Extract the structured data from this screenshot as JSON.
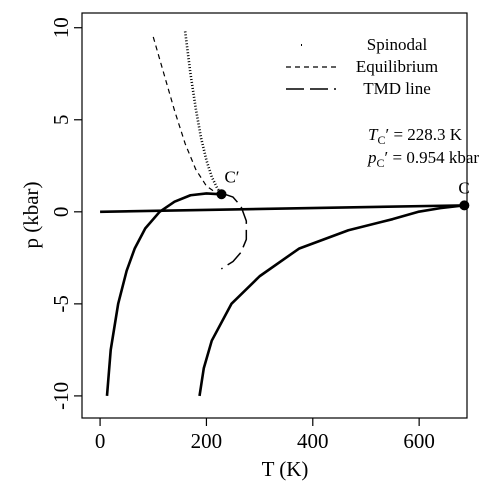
{
  "chart_data": {
    "type": "line",
    "x_label": "T (K)",
    "y_label": "p (kbar)",
    "xlim": [
      -34,
      690
    ],
    "ylim": [
      -11.2,
      10.8
    ],
    "xticks": [
      0,
      200,
      400,
      600
    ],
    "yticks": [
      -10,
      -5,
      0,
      5,
      10
    ],
    "legend": "top-right",
    "series": [
      {
        "name": "Spinodal",
        "color": "#000000",
        "linestyle": "dotted",
        "x": [
          160,
          170,
          180,
          190,
          200,
          210,
          220,
          228
        ],
        "values": [
          9.8,
          7.5,
          5.6,
          4.0,
          2.8,
          1.9,
          1.3,
          0.95
        ]
      },
      {
        "name": "Equilibrium",
        "color": "#000000",
        "linestyle": "dashed",
        "x": [
          100,
          120,
          140,
          160,
          180,
          200,
          220
        ],
        "values": [
          9.5,
          7.5,
          5.5,
          3.7,
          2.3,
          1.4,
          1.0
        ]
      },
      {
        "name": "TMD line",
        "color": "#000000",
        "linestyle": "longdash",
        "x": [
          230,
          250,
          265,
          275,
          275,
          265,
          250,
          228
        ],
        "values": [
          1.0,
          0.8,
          0.3,
          -0.5,
          -1.5,
          -2.2,
          -2.7,
          -3.1
        ]
      },
      {
        "color": "#000000",
        "linestyle": "solid",
        "x": [
          13,
          20,
          34,
          50,
          65,
          85,
          112,
          140,
          170,
          200,
          228
        ],
        "values": [
          -10,
          -7.5,
          -5,
          -3.2,
          -2,
          -0.9,
          0,
          0.55,
          0.9,
          1.0,
          0.95
        ]
      },
      {
        "color": "#000000",
        "linestyle": "solid",
        "x": [
          187,
          195,
          210,
          247,
          300,
          374,
          467,
          550,
          598,
          640,
          685
        ],
        "values": [
          -10,
          -8.5,
          -7,
          -5,
          -3.5,
          -2,
          -1,
          -0.4,
          0,
          0.2,
          0.35
        ]
      },
      {
        "color": "#000000",
        "linestyle": "solid",
        "x": [
          0,
          685
        ],
        "values": [
          0,
          0.35
        ]
      }
    ],
    "points": [
      {
        "label": "C′",
        "x": 228.3,
        "y": 0.954
      },
      {
        "label": "C",
        "x": 685,
        "y": 0.35
      }
    ],
    "annotations": [
      {
        "symbol": "T",
        "subscript": "C",
        "text": "′ = 228.3 K"
      },
      {
        "symbol": "p",
        "subscript": "C",
        "text": "′ = 0.954 kbar"
      }
    ]
  }
}
